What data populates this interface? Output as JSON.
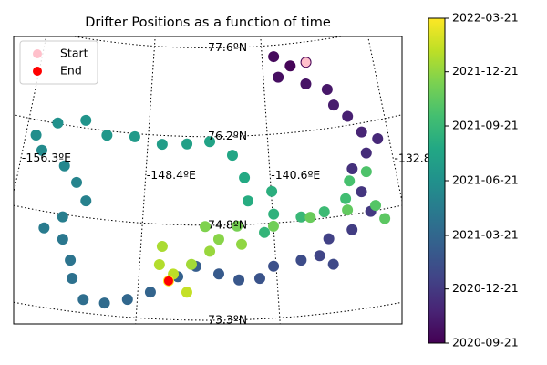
{
  "chart_data": {
    "type": "map-scatter",
    "title": "Drifter Positions as a function of time",
    "colormap": "viridis",
    "clim": [
      "2020-09-21",
      "2022-03-21"
    ],
    "cticks": [
      "2020-09-21",
      "2020-12-21",
      "2021-03-21",
      "2021-06-21",
      "2021-09-21",
      "2021-12-21",
      "2022-03-21"
    ],
    "lon_ticks": [
      {
        "value": -156.3,
        "label": "-156.3ºE"
      },
      {
        "value": -148.4,
        "label": "-148.4ºE"
      },
      {
        "value": -140.6,
        "label": "-140.6ºE"
      },
      {
        "value": -132.8,
        "label": "-132.8"
      }
    ],
    "lat_ticks": [
      {
        "value": 77.6,
        "label": "77.6ºN"
      },
      {
        "value": 76.2,
        "label": "76.2ºN"
      },
      {
        "value": 74.8,
        "label": "74.8ºN"
      },
      {
        "value": 73.3,
        "label": "73.3ºN"
      }
    ],
    "legend": "upper left",
    "series": [
      {
        "lon": [
          -137.5,
          -138.64,
          -139.76,
          -139.56,
          -137.69,
          -136.28,
          -136.0,
          -135.2,
          -134.46,
          -133.52,
          -134.4,
          -135.44,
          -135.1,
          -134.75,
          -136.01,
          -137.43,
          -138.07,
          -137.35,
          -139.15,
          -140.75,
          -141.57,
          -142.75,
          -143.88,
          -145.18,
          -146.2,
          -147.7,
          -148.94,
          -150.18,
          -151.36,
          -152.12,
          -152.36,
          -152.96,
          -154.14,
          -153.16,
          -151.91,
          -152.63,
          -153.53,
          -155.1,
          -155.65,
          -154.4,
          -152.6,
          -151.1,
          -149.28,
          -147.47,
          -145.86,
          -144.38,
          -142.92,
          -142.21,
          -142.05,
          -140.56,
          -140.54,
          -141.16,
          -138.91,
          -137.5,
          -136.12,
          -135.73,
          -134.6,
          -134.4,
          -134.0,
          -136.11,
          -138.37,
          -140.6,
          -142.76,
          -144.66,
          -143.86,
          -142.53,
          -144.39,
          -145.44,
          -147.16,
          -147.27,
          -146.46,
          -145.67,
          -146.71
        ],
        "lat": [
          77.28,
          77.25,
          77.42,
          77.09,
          76.94,
          76.81,
          76.55,
          76.34,
          76.06,
          75.91,
          75.72,
          75.51,
          75.13,
          74.8,
          74.56,
          74.47,
          74.22,
          74.06,
          74.18,
          74.12,
          73.94,
          73.93,
          74.03,
          74.15,
          73.98,
          73.72,
          73.58,
          73.49,
          73.51,
          73.82,
          74.1,
          74.41,
          74.54,
          74.76,
          75.06,
          75.33,
          75.56,
          75.74,
          75.96,
          76.21,
          76.32,
          76.13,
          76.15,
          76.06,
          76.08,
          76.12,
          75.9,
          75.54,
          75.17,
          75.3,
          74.94,
          74.66,
          74.86,
          74.9,
          75.06,
          75.33,
          75.43,
          74.88,
          74.65,
          74.88,
          74.84,
          74.75,
          74.78,
          74.78,
          74.58,
          74.49,
          74.39,
          74.18,
          74.45,
          74.16,
          74.02,
          73.74,
          73.91
        ],
        "dates": [
          "2020-09-21",
          "2020-09-28",
          "2020-10-05",
          "2020-10-12",
          "2020-10-19",
          "2020-10-26",
          "2020-11-02",
          "2020-11-09",
          "2020-11-16",
          "2020-11-23",
          "2020-11-30",
          "2020-12-07",
          "2020-12-14",
          "2020-12-21",
          "2020-12-28",
          "2021-01-04",
          "2021-01-11",
          "2021-01-18",
          "2021-01-25",
          "2021-02-01",
          "2021-02-08",
          "2021-02-15",
          "2021-02-22",
          "2021-03-01",
          "2021-03-08",
          "2021-03-15",
          "2021-03-22",
          "2021-03-29",
          "2021-04-05",
          "2021-04-12",
          "2021-04-19",
          "2021-04-26",
          "2021-05-03",
          "2021-05-10",
          "2021-05-17",
          "2021-05-24",
          "2021-05-31",
          "2021-06-07",
          "2021-06-14",
          "2021-06-21",
          "2021-06-28",
          "2021-07-05",
          "2021-07-12",
          "2021-07-19",
          "2021-07-26",
          "2021-08-02",
          "2021-08-09",
          "2021-08-16",
          "2021-08-23",
          "2021-08-30",
          "2021-09-06",
          "2021-09-13",
          "2021-09-20",
          "2021-09-27",
          "2021-10-04",
          "2021-10-11",
          "2021-10-18",
          "2021-10-25",
          "2021-11-01",
          "2021-11-08",
          "2021-11-15",
          "2021-11-22",
          "2021-11-29",
          "2021-12-06",
          "2021-12-13",
          "2021-12-20",
          "2021-12-27",
          "2022-01-03",
          "2022-01-10",
          "2022-01-17",
          "2022-01-24",
          "2022-01-31",
          "2022-03-21"
        ]
      },
      {
        "name": "Start",
        "color": "#ffc0cb",
        "lon": [
          -137.5
        ],
        "lat": [
          77.28
        ]
      },
      {
        "name": "End",
        "color": "#ff0000",
        "lon": [
          -146.71
        ],
        "lat": [
          73.91
        ]
      }
    ]
  }
}
